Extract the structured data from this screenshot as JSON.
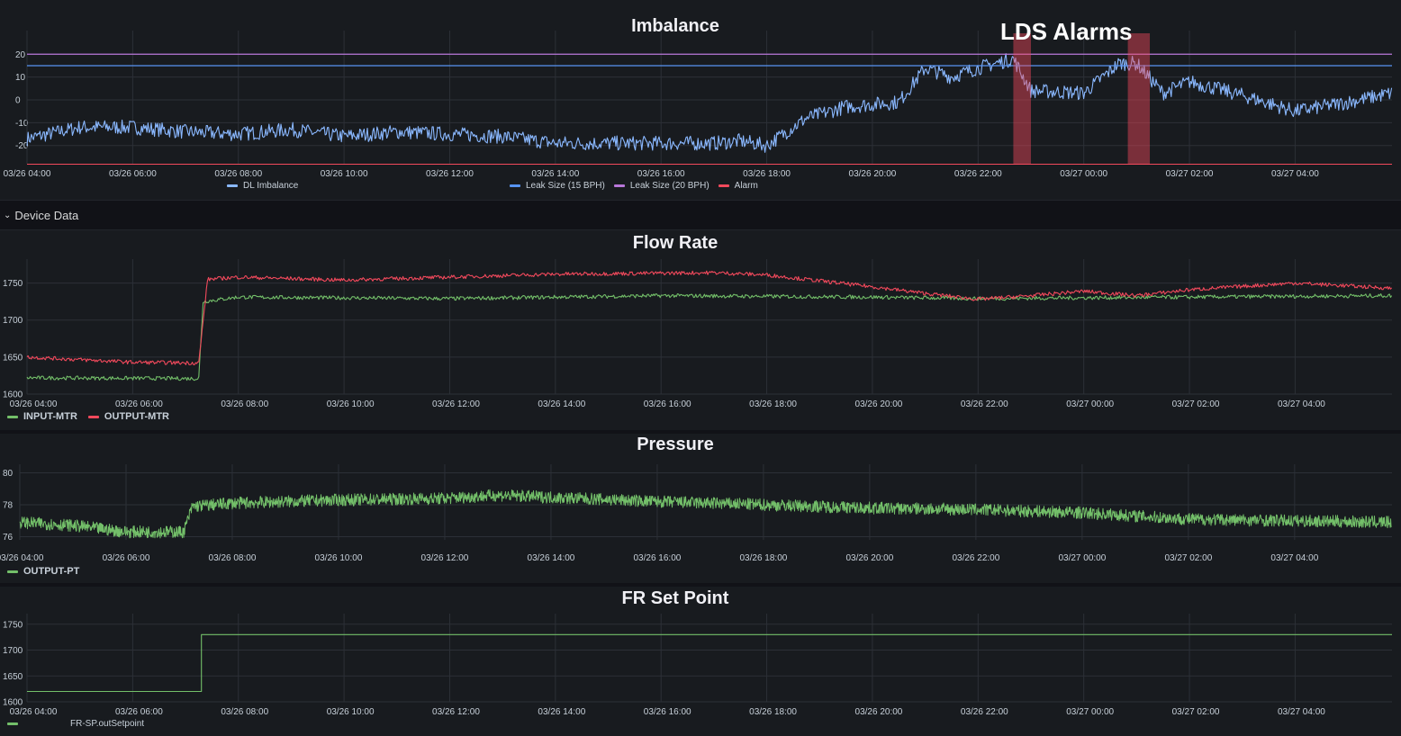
{
  "imbalance": {
    "title": "Imbalance",
    "annotation": "LDS Alarms",
    "legend": [
      "DL Imbalance",
      "Leak Size (15 BPH)",
      "Leak Size (20 BPH)",
      "Alarm"
    ]
  },
  "row": {
    "label": "Device Data"
  },
  "flow": {
    "title": "Flow Rate",
    "legend": [
      "INPUT-MTR",
      "OUTPUT-MTR"
    ]
  },
  "pressure": {
    "title": "Pressure",
    "legend": [
      "OUTPUT-PT"
    ]
  },
  "setpoint": {
    "title": "FR Set Point",
    "legend": [
      "FR-SP.outSetpoint"
    ]
  },
  "chart_data": [
    {
      "type": "line",
      "title": "Imbalance",
      "x_range": [
        "03/26 04:00",
        "03/27 05:50"
      ],
      "x_ticks": [
        "03/26 04:00",
        "03/26 06:00",
        "03/26 08:00",
        "03/26 10:00",
        "03/26 12:00",
        "03/26 14:00",
        "03/26 16:00",
        "03/26 18:00",
        "03/26 20:00",
        "03/26 22:00",
        "03/27 00:00",
        "03/27 02:00",
        "03/27 04:00"
      ],
      "y_ticks": [
        20,
        10,
        0,
        -10,
        -20
      ],
      "ylim": [
        -28,
        28
      ],
      "series": [
        {
          "name": "DL Imbalance",
          "color": "#8ab8ff",
          "points": [
            [
              "03/26 04:00",
              -17
            ],
            [
              "03/26 05:00",
              -12
            ],
            [
              "03/26 06:00",
              -12
            ],
            [
              "03/26 07:00",
              -14
            ],
            [
              "03/26 08:00",
              -15
            ],
            [
              "03/26 09:00",
              -13
            ],
            [
              "03/26 10:00",
              -16
            ],
            [
              "03/26 11:00",
              -14
            ],
            [
              "03/26 12:00",
              -15
            ],
            [
              "03/26 13:00",
              -16
            ],
            [
              "03/26 14:00",
              -19
            ],
            [
              "03/26 15:00",
              -19
            ],
            [
              "03/26 16:00",
              -19
            ],
            [
              "03/26 17:00",
              -19
            ],
            [
              "03/26 17:30",
              -18
            ],
            [
              "03/26 18:00",
              -20
            ],
            [
              "03/26 18:45",
              -8
            ],
            [
              "03/26 19:30",
              -3
            ],
            [
              "03/26 20:30",
              -1
            ],
            [
              "03/26 21:00",
              14
            ],
            [
              "03/26 21:30",
              10
            ],
            [
              "03/26 22:00",
              14
            ],
            [
              "03/26 22:40",
              18
            ],
            [
              "03/26 23:00",
              4
            ],
            [
              "03/27 00:00",
              3
            ],
            [
              "03/27 00:40",
              16
            ],
            [
              "03/27 01:00",
              16
            ],
            [
              "03/27 01:30",
              3
            ],
            [
              "03/27 02:00",
              8
            ],
            [
              "03/27 03:00",
              2
            ],
            [
              "03/27 04:00",
              -5
            ],
            [
              "03/27 05:00",
              -1
            ],
            [
              "03/27 05:50",
              3
            ]
          ]
        },
        {
          "name": "Leak Size (15 BPH)",
          "color": "#5794f2",
          "constant": 15
        },
        {
          "name": "Leak Size (20 BPH)",
          "color": "#b877d9",
          "constant": 20
        },
        {
          "name": "Alarm",
          "color": "#f2495c",
          "regions": [
            [
              "03/26 22:40",
              "03/26 23:00"
            ],
            [
              "03/27 00:50",
              "03/27 01:15"
            ]
          ]
        }
      ]
    },
    {
      "type": "line",
      "title": "Flow Rate",
      "x_range": [
        "03/26 04:00",
        "03/27 05:50"
      ],
      "x_ticks": [
        "03/26 04:00",
        "03/26 06:00",
        "03/26 08:00",
        "03/26 10:00",
        "03/26 12:00",
        "03/26 14:00",
        "03/26 16:00",
        "03/26 18:00",
        "03/26 20:00",
        "03/26 22:00",
        "03/27 00:00",
        "03/27 02:00",
        "03/27 04:00"
      ],
      "y_ticks": [
        1750,
        1700,
        1650,
        1600
      ],
      "ylim": [
        1600,
        1775
      ],
      "series": [
        {
          "name": "INPUT-MTR",
          "color": "#73bf69",
          "points": [
            [
              "03/26 04:00",
              1622
            ],
            [
              "03/26 07:15",
              1621
            ],
            [
              "03/26 07:20",
              1725
            ],
            [
              "03/26 08:00",
              1731
            ],
            [
              "03/26 12:00",
              1729
            ],
            [
              "03/26 16:00",
              1733
            ],
            [
              "03/26 20:00",
              1731
            ],
            [
              "03/26 22:00",
              1729
            ],
            [
              "03/27 05:50",
              1733
            ]
          ]
        },
        {
          "name": "OUTPUT-MTR",
          "color": "#f2495c",
          "points": [
            [
              "03/26 04:00",
              1650
            ],
            [
              "03/26 06:00",
              1643
            ],
            [
              "03/26 07:15",
              1642
            ],
            [
              "03/26 07:25",
              1755
            ],
            [
              "03/26 08:00",
              1758
            ],
            [
              "03/26 10:00",
              1754
            ],
            [
              "03/26 14:00",
              1762
            ],
            [
              "03/26 17:00",
              1764
            ],
            [
              "03/26 18:00",
              1761
            ],
            [
              "03/26 20:00",
              1745
            ],
            [
              "03/26 21:00",
              1736
            ],
            [
              "03/26 22:00",
              1728
            ],
            [
              "03/26 23:00",
              1733
            ],
            [
              "03/27 00:00",
              1739
            ],
            [
              "03/27 01:00",
              1733
            ],
            [
              "03/27 02:00",
              1741
            ],
            [
              "03/27 04:00",
              1750
            ],
            [
              "03/27 05:50",
              1743
            ]
          ]
        }
      ]
    },
    {
      "type": "line",
      "title": "Pressure",
      "x_range": [
        "03/26 04:00",
        "03/27 05:50"
      ],
      "x_ticks": [
        "03/26 04:00",
        "03/26 06:00",
        "03/26 08:00",
        "03/26 10:00",
        "03/26 12:00",
        "03/26 14:00",
        "03/26 16:00",
        "03/26 18:00",
        "03/26 20:00",
        "03/26 22:00",
        "03/27 00:00",
        "03/27 02:00",
        "03/27 04:00"
      ],
      "y_ticks": [
        80,
        78,
        76
      ],
      "ylim": [
        75.8,
        80.2
      ],
      "series": [
        {
          "name": "OUTPUT-PT",
          "color": "#73bf69",
          "points": [
            [
              "03/26 04:00",
              76.9
            ],
            [
              "03/26 05:00",
              76.7
            ],
            [
              "03/26 06:00",
              76.3
            ],
            [
              "03/26 07:05",
              76.3
            ],
            [
              "03/26 07:15",
              77.9
            ],
            [
              "03/26 08:00",
              78.1
            ],
            [
              "03/26 10:00",
              78.3
            ],
            [
              "03/26 12:00",
              78.4
            ],
            [
              "03/26 13:00",
              78.6
            ],
            [
              "03/26 16:00",
              78.2
            ],
            [
              "03/26 18:00",
              78.0
            ],
            [
              "03/26 20:00",
              77.8
            ],
            [
              "03/26 22:00",
              77.7
            ],
            [
              "03/27 00:00",
              77.5
            ],
            [
              "03/27 02:00",
              77.1
            ],
            [
              "03/27 05:50",
              76.9
            ]
          ]
        }
      ]
    },
    {
      "type": "line",
      "title": "FR Set Point",
      "x_range": [
        "03/26 04:00",
        "03/27 05:50"
      ],
      "x_ticks": [
        "03/26 04:00",
        "03/26 06:00",
        "03/26 08:00",
        "03/26 10:00",
        "03/26 12:00",
        "03/26 14:00",
        "03/26 16:00",
        "03/26 18:00",
        "03/26 20:00",
        "03/26 22:00",
        "03/27 00:00",
        "03/27 02:00",
        "03/27 04:00"
      ],
      "y_ticks": [
        1750,
        1700,
        1650,
        1600
      ],
      "ylim": [
        1600,
        1760
      ],
      "series": [
        {
          "name": "FR-SP.outSetpoint",
          "color": "#73bf69",
          "points": [
            [
              "03/26 04:00",
              1620
            ],
            [
              "03/26 07:18",
              1620
            ],
            [
              "03/26 07:18",
              1730
            ],
            [
              "03/27 05:50",
              1730
            ]
          ]
        }
      ]
    }
  ]
}
